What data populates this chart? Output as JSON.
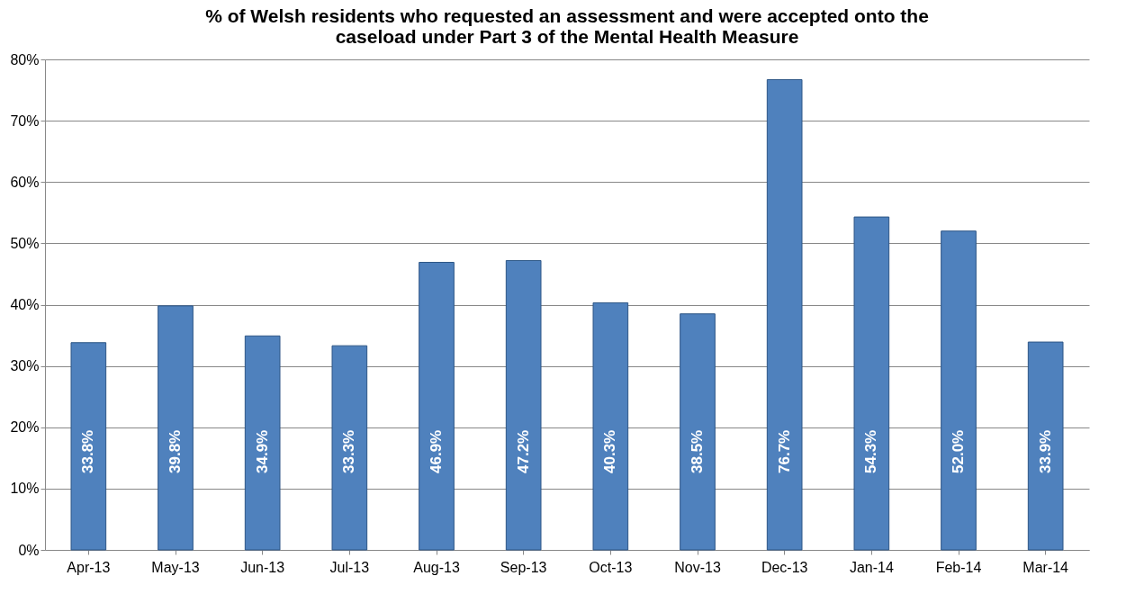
{
  "chart_data": {
    "type": "bar",
    "title": "% of Welsh residents who requested an assessment and were accepted onto the caseload under Part 3 of the Mental Health Measure",
    "categories": [
      "Apr-13",
      "May-13",
      "Jun-13",
      "Jul-13",
      "Aug-13",
      "Sep-13",
      "Oct-13",
      "Nov-13",
      "Dec-13",
      "Jan-14",
      "Feb-14",
      "Mar-14"
    ],
    "values": [
      33.8,
      39.8,
      34.9,
      33.3,
      46.9,
      47.2,
      40.3,
      38.5,
      76.7,
      54.3,
      52.0,
      33.9
    ],
    "value_labels": [
      "33.8%",
      "39.8%",
      "34.9%",
      "33.3%",
      "46.9%",
      "47.2%",
      "40.3%",
      "38.5%",
      "76.7%",
      "54.3%",
      "52.0%",
      "33.9%"
    ],
    "color": "#4f81bd",
    "ylim": [
      0,
      80
    ],
    "yticks": [
      {
        "value": 0,
        "label": "0%"
      },
      {
        "value": 10,
        "label": "10%"
      },
      {
        "value": 20,
        "label": "20%"
      },
      {
        "value": 30,
        "label": "30%"
      },
      {
        "value": 40,
        "label": "40%"
      },
      {
        "value": 50,
        "label": "50%"
      },
      {
        "value": 60,
        "label": "60%"
      },
      {
        "value": 70,
        "label": "70%"
      },
      {
        "value": 80,
        "label": "80%"
      }
    ],
    "grid": "y"
  }
}
